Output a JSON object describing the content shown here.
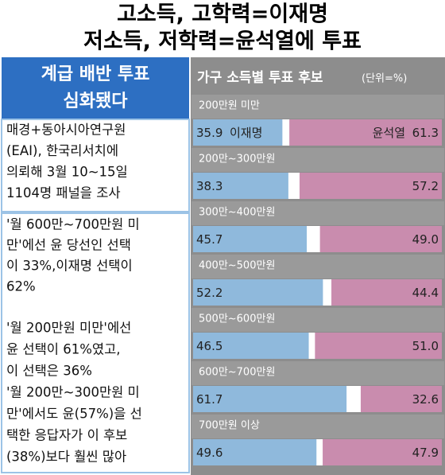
{
  "title_lines": [
    "고소득, 고학력=이재명",
    "저소득, 저학력=윤석열에 투표"
  ],
  "side_header": [
    "계급 배반 투표",
    "심화됐다"
  ],
  "notes": [
    [
      "매경+동아시아연구원",
      "(EAI), 한국리서치에",
      "의뢰해 3월 10~15일",
      "1104명 패널을 조사"
    ],
    [
      " '월 600만~700만원 미",
      "만'에선 윤 당선인 선택",
      "이 33%,이재명 선택이",
      "62%"
    ],
    [
      "'월 200만원 미만'에선",
      "윤 선택이 61%였고,",
      "이 선택은 36%",
      "'월 200만~300만원 미",
      "만'에서도 윤(57%)을 선",
      "택한 응답자가 이 후보",
      "(38%)보다 훨씬 많아"
    ]
  ],
  "chart_data": {
    "type": "bar",
    "orientation": "horizontal",
    "title": "가구 소득별 투표 후보",
    "subtitle": "(단위=%)",
    "categories": [
      "200만원 미만",
      "200만~300만원",
      "300만~400만원",
      "400만~500만원",
      "500만~600만원",
      "600만~700만원",
      "700만원 이상"
    ],
    "xlim": [
      0,
      100
    ],
    "series": [
      {
        "name": "이재명",
        "color": "#8fb9dc",
        "anchor": "left",
        "values": [
          35.9,
          38.3,
          45.7,
          52.2,
          46.5,
          61.7,
          49.6
        ],
        "value_labels": [
          "35.9",
          "38.3",
          "45.7",
          "52.2",
          "46.5",
          "61.7",
          "49.6"
        ]
      },
      {
        "name": "윤석열",
        "color": "#c98cae",
        "anchor": "right",
        "values": [
          61.3,
          57.2,
          49.0,
          44.4,
          51.0,
          32.6,
          47.9
        ],
        "value_labels": [
          "61.3",
          "57.2",
          "49.0",
          "44.4",
          "51.0",
          "32.6",
          "47.9"
        ]
      }
    ]
  }
}
